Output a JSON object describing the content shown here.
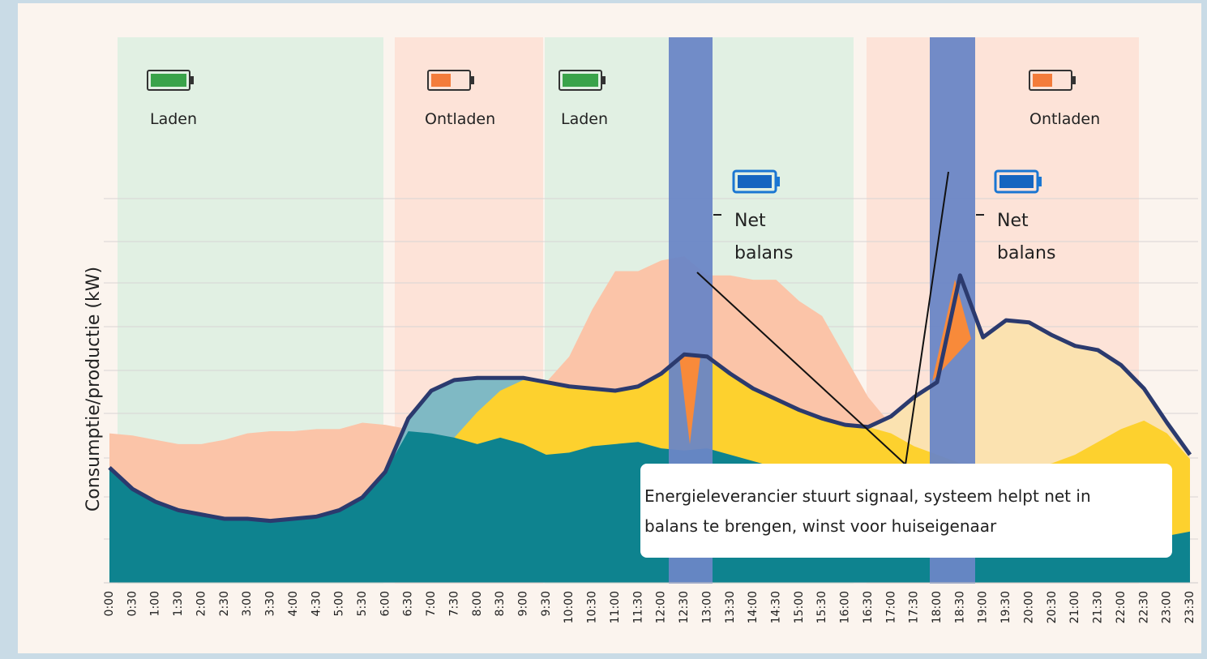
{
  "chart_data": {
    "type": "area",
    "ylabel": "Consumptie/productie (kW)",
    "categories": [
      "0:00",
      "0:30",
      "1:00",
      "1:30",
      "2:00",
      "2:30",
      "3:00",
      "3:30",
      "4:00",
      "4:30",
      "5:00",
      "5:30",
      "6:00",
      "6:30",
      "7:00",
      "7:30",
      "8:00",
      "8:30",
      "9:00",
      "9:30",
      "10:00",
      "10:30",
      "11:00",
      "11:30",
      "12:00",
      "12:30",
      "13:00",
      "13:30",
      "14:00",
      "14:30",
      "15:00",
      "15:30",
      "16:00",
      "16:30",
      "17:00",
      "17:30",
      "18:00",
      "18:30",
      "19:00",
      "19:30",
      "20:00",
      "20:30",
      "21:00",
      "21:30",
      "22:00",
      "22:30",
      "23:00",
      "23:30"
    ],
    "ylim": [
      0,
      9
    ],
    "series": [
      {
        "color": "#fbc4a8",
        "values": [
          3.5,
          3.45,
          3.35,
          3.25,
          3.25,
          3.35,
          3.5,
          3.55,
          3.55,
          3.6,
          3.6,
          3.75,
          3.7,
          3.6,
          4.5,
          4.75,
          4.8,
          4.8,
          4.8,
          4.7,
          5.3,
          6.4,
          7.3,
          7.3,
          7.55,
          7.65,
          7.2,
          7.2,
          7.1,
          7.1,
          6.6,
          6.25,
          5.3,
          4.35,
          3.7,
          null,
          null,
          null,
          null,
          null,
          null,
          null,
          null,
          null,
          null,
          null,
          null,
          null
        ]
      },
      {
        "color": "#fbe2b0",
        "values": [
          null,
          null,
          null,
          null,
          null,
          null,
          null,
          null,
          null,
          null,
          null,
          null,
          null,
          null,
          null,
          null,
          null,
          null,
          null,
          null,
          null,
          null,
          null,
          null,
          null,
          null,
          null,
          null,
          null,
          null,
          null,
          null,
          null,
          3.65,
          3.9,
          4.35,
          4.7,
          7.2,
          5.75,
          6.15,
          6.1,
          5.8,
          5.55,
          5.45,
          5.1,
          4.55,
          3.75,
          3.0
        ]
      },
      {
        "color": "#7fb9c4",
        "values": [
          null,
          null,
          null,
          null,
          null,
          null,
          null,
          null,
          null,
          null,
          null,
          null,
          2.6,
          3.85,
          4.5,
          4.75,
          4.8,
          4.8,
          4.8,
          4.7,
          null,
          null,
          null,
          null,
          null,
          null,
          null,
          null,
          null,
          null,
          null,
          null,
          null,
          null,
          null,
          null,
          null,
          null,
          null,
          null,
          null,
          null,
          null,
          null,
          null,
          null,
          null,
          null
        ]
      },
      {
        "color": "#fdd12e",
        "values": [
          null,
          null,
          null,
          null,
          null,
          null,
          null,
          null,
          null,
          null,
          null,
          null,
          null,
          null,
          null,
          3.4,
          4.0,
          4.5,
          4.75,
          4.7,
          4.6,
          4.55,
          4.5,
          4.6,
          4.9,
          5.35,
          5.3,
          4.9,
          4.55,
          4.3,
          4.05,
          3.85,
          3.7,
          3.65,
          3.5,
          3.2,
          3.0,
          2.8,
          2.7,
          2.7,
          2.7,
          2.8,
          3.0,
          3.3,
          3.6,
          3.8,
          3.5,
          2.9
        ]
      },
      {
        "color": "#0e838f",
        "values": [
          2.7,
          2.2,
          1.9,
          1.7,
          1.6,
          1.5,
          1.5,
          1.45,
          1.5,
          1.55,
          1.7,
          2.0,
          2.6,
          3.55,
          3.5,
          3.4,
          3.25,
          3.4,
          3.25,
          3.0,
          3.05,
          3.2,
          3.25,
          3.3,
          3.15,
          3.1,
          3.15,
          3.0,
          2.85,
          2.7,
          2.6,
          2.5,
          2.45,
          2.4,
          2.35,
          2.3,
          2.1,
          2.0,
          1.8,
          1.6,
          1.5,
          1.4,
          1.3,
          1.2,
          1.1,
          1.1,
          1.1,
          1.2
        ]
      },
      {
        "color": "#2b3a6e",
        "line": true,
        "values": [
          2.7,
          2.2,
          1.9,
          1.7,
          1.6,
          1.5,
          1.5,
          1.45,
          1.5,
          1.55,
          1.7,
          2.0,
          2.6,
          3.85,
          4.5,
          4.75,
          4.8,
          4.8,
          4.8,
          4.7,
          4.6,
          4.55,
          4.5,
          4.6,
          4.9,
          5.35,
          5.3,
          4.9,
          4.55,
          4.3,
          4.05,
          3.85,
          3.7,
          3.65,
          3.9,
          4.35,
          4.7,
          7.2,
          5.75,
          6.15,
          6.1,
          5.8,
          5.55,
          5.45,
          5.1,
          4.55,
          3.75,
          3.0
        ]
      }
    ],
    "band_labels": [
      "Laden",
      "Ontladen",
      "Laden",
      "Ontladen"
    ],
    "net_labels": [
      [
        "Net",
        "balans"
      ],
      [
        "Net",
        "balans"
      ]
    ],
    "annotation": [
      "Energieleverancier stuurt signaal, systeem helpt net in",
      "balans te brengen, winst voor huiseigenaar"
    ]
  }
}
